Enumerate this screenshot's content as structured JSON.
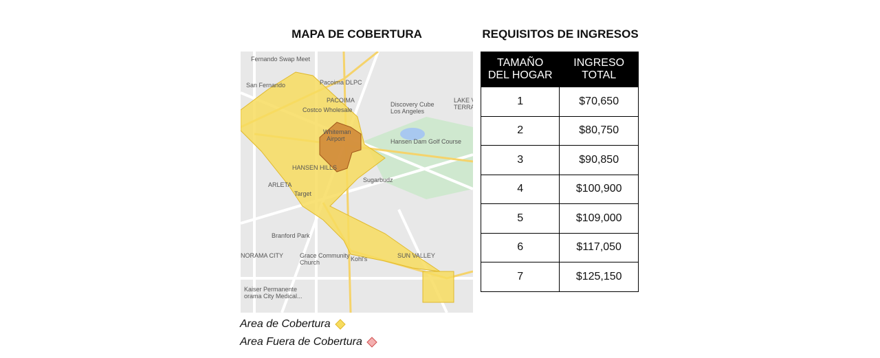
{
  "map_panel": {
    "title": "MAPA DE COBERTURA",
    "labels": [
      "Fernando Swap Meet",
      "Pacoima DLPC",
      "San Fernando",
      "PACOIMA",
      "Costco Wholesale",
      "Discovery Cube",
      "Los Angeles",
      "LAKE VIEW",
      "TERRACE",
      "Whiteman",
      "Airport",
      "Hansen Dam Golf Course",
      "HANSEN HILLS",
      "Sugarbudz",
      "ARLETA",
      "Target",
      "Branford Park",
      "NORAMA CITY",
      "Grace Community",
      "Church",
      "Kohl's",
      "SUN VALLEY",
      "Kaiser Permanente",
      "orama City Medical..."
    ],
    "legend": [
      "Area de Cobertura",
      "Area Fuera de Cobertura"
    ]
  },
  "income_panel": {
    "title": "REQUISITOS DE INGRESOS",
    "table": {
      "header": [
        [
          "TAMAÑO",
          "DEL HOGAR"
        ],
        [
          "INGRESO",
          "TOTAL"
        ]
      ],
      "rows": [
        [
          1,
          "$70,650"
        ],
        [
          2,
          "$80,750"
        ],
        [
          3,
          "$90,850"
        ],
        [
          4,
          "$100,900"
        ],
        [
          5,
          "$109,000"
        ],
        [
          6,
          "$117,050"
        ],
        [
          7,
          "$125,150"
        ]
      ]
    }
  }
}
